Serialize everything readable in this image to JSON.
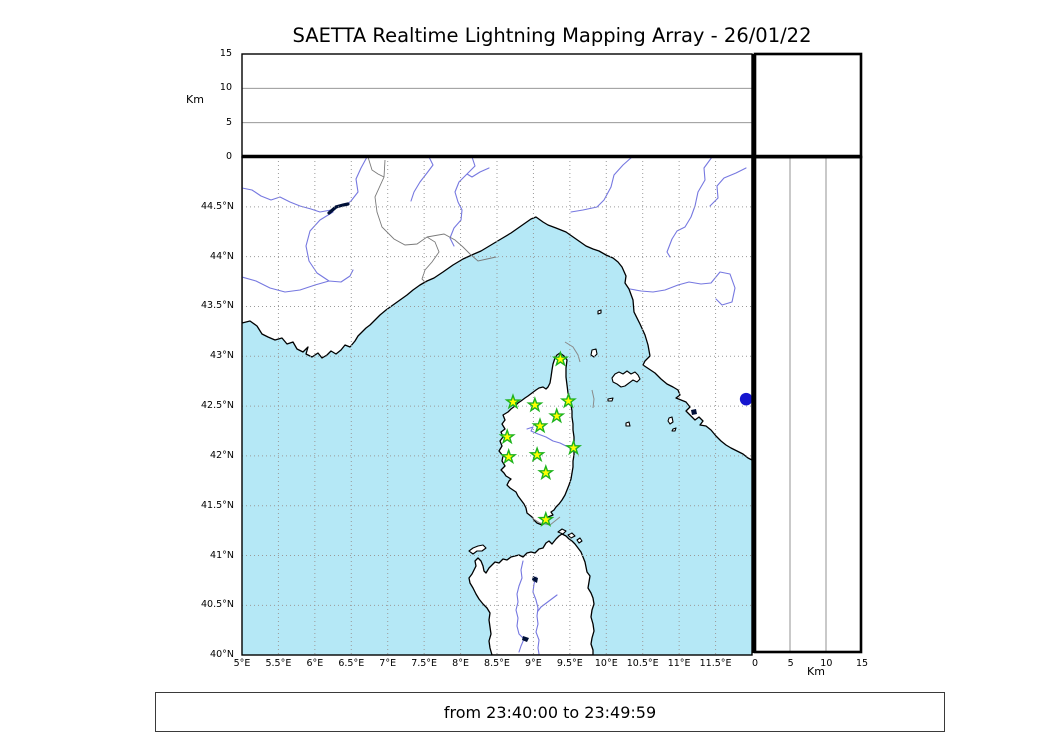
{
  "title": "SAETTA Realtime Lightning Mapping Array - 26/01/22",
  "footer": {
    "time_range": "from 23:40:00 to 23:49:59"
  },
  "altitude_axes": {
    "unit_label": "Km",
    "top_panel_ticks": [
      "15",
      "10",
      "5",
      "0"
    ],
    "right_panel_ticks": [
      "0",
      "5",
      "10",
      "15"
    ]
  },
  "map": {
    "lat_tick_labels": [
      "44.5°N",
      "44°N",
      "43.5°N",
      "43°N",
      "42.5°N",
      "42°N",
      "41.5°N",
      "41°N",
      "40.5°N",
      "40°N"
    ],
    "lon_tick_labels": [
      "5°E",
      "5.5°E",
      "6°E",
      "6.5°E",
      "7°E",
      "7.5°E",
      "8°E",
      "8.5°E",
      "9°E",
      "9.5°E",
      "10°E",
      "10.5°E",
      "11°E",
      "11.5°E"
    ],
    "stations": [
      {
        "lon": 9.37,
        "lat": 42.97
      },
      {
        "lon": 8.72,
        "lat": 42.54
      },
      {
        "lon": 9.02,
        "lat": 42.51
      },
      {
        "lon": 9.48,
        "lat": 42.55
      },
      {
        "lon": 9.32,
        "lat": 42.4
      },
      {
        "lon": 9.09,
        "lat": 42.3
      },
      {
        "lon": 8.64,
        "lat": 42.19
      },
      {
        "lon": 9.55,
        "lat": 42.08
      },
      {
        "lon": 8.66,
        "lat": 41.99
      },
      {
        "lon": 9.05,
        "lat": 42.01
      },
      {
        "lon": 9.17,
        "lat": 41.83
      },
      {
        "lon": 9.17,
        "lat": 41.36
      }
    ],
    "lake_marker": {
      "lon": 11.92,
      "lat": 42.57
    },
    "colors": {
      "sea": "#b5e8f6",
      "land": "#ffffff",
      "coastline": "#000000",
      "rivers": "#7678e0",
      "grid": "#9a9a9a",
      "borders": "#7a7a7a",
      "routes": "#8a8a8a",
      "station_fill": "#ffff00",
      "station_stroke": "#1db31d",
      "lake_fill": "#1515cf",
      "dark_water": "#001038"
    }
  }
}
